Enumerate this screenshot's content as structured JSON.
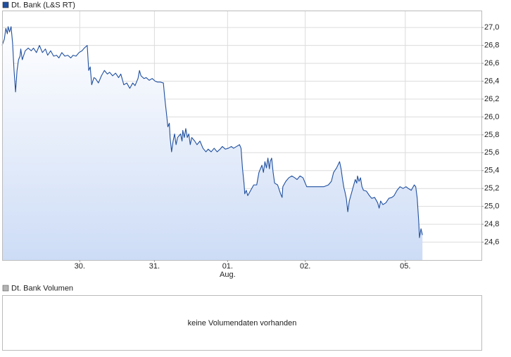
{
  "chart_data": {
    "type": "line",
    "grid": true,
    "area_color": "#cddcf6",
    "xlim": [
      0,
      6.42
    ],
    "ylim": [
      24.4,
      27.19
    ],
    "xticks": [
      {
        "value": 1.04,
        "label": "30."
      },
      {
        "value": 2.04,
        "label": "31."
      },
      {
        "value": 3.02,
        "label": "01."
      },
      {
        "value": 4.06,
        "label": "02."
      },
      {
        "value": 5.4,
        "label": "05."
      }
    ],
    "annotations": [
      {
        "text": "Aug.",
        "x": 3.02
      }
    ],
    "yticks": [
      {
        "value": 24.6,
        "label": "24,6"
      },
      {
        "value": 24.8,
        "label": "24,8"
      },
      {
        "value": 25.0,
        "label": "25,0"
      },
      {
        "value": 25.2,
        "label": "25,2"
      },
      {
        "value": 25.4,
        "label": "25,4"
      },
      {
        "value": 25.6,
        "label": "25,6"
      },
      {
        "value": 25.8,
        "label": "25,8"
      },
      {
        "value": 26.0,
        "label": "26,0"
      },
      {
        "value": 26.2,
        "label": "26,2"
      },
      {
        "value": 26.4,
        "label": "26,4"
      },
      {
        "value": 26.6,
        "label": "26,6"
      },
      {
        "value": 26.8,
        "label": "26,8"
      },
      {
        "value": 27.0,
        "label": "27,0"
      }
    ],
    "series": [
      {
        "name": "Dt. Bank (L&S RT)",
        "color": "#1f4f9f",
        "x": [
          0,
          0.03,
          0.05,
          0.07,
          0.08,
          0.1,
          0.12,
          0.14,
          0.16,
          0.18,
          0.2,
          0.22,
          0.24,
          0.25,
          0.27,
          0.31,
          0.35,
          0.39,
          0.42,
          0.46,
          0.5,
          0.54,
          0.58,
          0.61,
          0.65,
          0.69,
          0.73,
          0.76,
          0.8,
          0.84,
          0.88,
          0.92,
          0.95,
          0.99,
          1.03,
          1.07,
          1.1,
          1.14,
          1.16,
          1.18,
          1.2,
          1.23,
          1.25,
          1.29,
          1.33,
          1.37,
          1.41,
          1.44,
          1.48,
          1.52,
          1.56,
          1.59,
          1.63,
          1.67,
          1.71,
          1.75,
          1.78,
          1.82,
          1.84,
          1.86,
          1.9,
          1.93,
          1.97,
          2.01,
          2.05,
          2.08,
          2.12,
          2.16,
          2.18,
          2.2,
          2.22,
          2.24,
          2.25,
          2.27,
          2.29,
          2.31,
          2.33,
          2.35,
          2.39,
          2.41,
          2.42,
          2.44,
          2.46,
          2.48,
          2.5,
          2.52,
          2.54,
          2.58,
          2.61,
          2.65,
          2.69,
          2.73,
          2.76,
          2.8,
          2.84,
          2.88,
          2.92,
          2.95,
          2.99,
          3.03,
          3.07,
          3.1,
          3.14,
          3.18,
          3.2,
          3.22,
          3.24,
          3.25,
          3.27,
          3.29,
          3.33,
          3.37,
          3.41,
          3.44,
          3.48,
          3.5,
          3.52,
          3.54,
          3.56,
          3.58,
          3.59,
          3.61,
          3.63,
          3.65,
          3.69,
          3.73,
          3.75,
          3.76,
          3.8,
          3.84,
          3.88,
          3.92,
          3.95,
          3.99,
          4.03,
          4.05,
          4.08,
          4.12,
          4.22,
          4.31,
          4.37,
          4.41,
          4.44,
          4.48,
          4.52,
          4.54,
          4.56,
          4.58,
          4.59,
          4.61,
          4.63,
          4.65,
          4.67,
          4.69,
          4.71,
          4.73,
          4.75,
          4.76,
          4.78,
          4.8,
          4.82,
          4.84,
          4.88,
          4.92,
          4.95,
          4.99,
          5.03,
          5.05,
          5.07,
          5.1,
          5.14,
          5.18,
          5.22,
          5.25,
          5.29,
          5.33,
          5.37,
          5.41,
          5.44,
          5.48,
          5.52,
          5.54,
          5.56,
          5.58,
          5.59,
          5.61,
          5.63
        ],
        "values": [
          26.8,
          26.87,
          26.99,
          26.93,
          27.01,
          26.95,
          27.01,
          26.83,
          26.52,
          26.28,
          26.52,
          26.64,
          26.68,
          26.76,
          26.64,
          26.74,
          26.77,
          26.74,
          26.77,
          26.72,
          26.8,
          26.72,
          26.76,
          26.69,
          26.74,
          26.68,
          26.69,
          26.66,
          26.72,
          26.68,
          26.69,
          26.66,
          26.69,
          26.68,
          26.72,
          26.74,
          26.77,
          26.8,
          26.52,
          26.56,
          26.36,
          26.44,
          26.43,
          26.38,
          26.46,
          26.52,
          26.48,
          26.5,
          26.46,
          26.49,
          26.44,
          26.48,
          26.36,
          26.38,
          26.32,
          26.38,
          26.35,
          26.43,
          26.52,
          26.46,
          26.43,
          26.44,
          26.41,
          26.43,
          26.4,
          26.39,
          26.39,
          26.38,
          26.2,
          26.05,
          25.89,
          25.93,
          25.77,
          25.61,
          25.73,
          25.81,
          25.69,
          25.77,
          25.81,
          25.73,
          25.85,
          25.77,
          25.87,
          25.77,
          25.81,
          25.69,
          25.77,
          25.73,
          25.69,
          25.73,
          25.65,
          25.61,
          25.64,
          25.61,
          25.65,
          25.61,
          25.64,
          25.67,
          25.64,
          25.65,
          25.67,
          25.65,
          25.67,
          25.69,
          25.65,
          25.42,
          25.26,
          25.14,
          25.18,
          25.12,
          25.18,
          25.24,
          25.24,
          25.38,
          25.46,
          25.38,
          25.5,
          25.43,
          25.54,
          25.42,
          25.5,
          25.54,
          25.38,
          25.26,
          25.24,
          25.14,
          25.1,
          25.22,
          25.28,
          25.32,
          25.34,
          25.32,
          25.3,
          25.34,
          25.32,
          25.28,
          25.22,
          25.22,
          25.22,
          25.22,
          25.24,
          25.28,
          25.38,
          25.43,
          25.5,
          25.42,
          25.3,
          25.2,
          25.17,
          25.09,
          24.94,
          25.06,
          25.12,
          25.18,
          25.24,
          25.3,
          25.26,
          25.34,
          25.28,
          25.32,
          25.22,
          25.18,
          25.17,
          25.12,
          25.09,
          25.1,
          25.04,
          24.98,
          25.06,
          25.02,
          25.04,
          25.09,
          25.1,
          25.12,
          25.18,
          25.22,
          25.2,
          25.22,
          25.2,
          25.18,
          25.24,
          25.22,
          25.09,
          24.83,
          24.65,
          24.75,
          24.68
        ]
      }
    ]
  },
  "volume_panel": {
    "title": "Dt. Bank Volumen",
    "color": "#b4b4b4",
    "message": "keine Volumendaten vorhanden"
  }
}
